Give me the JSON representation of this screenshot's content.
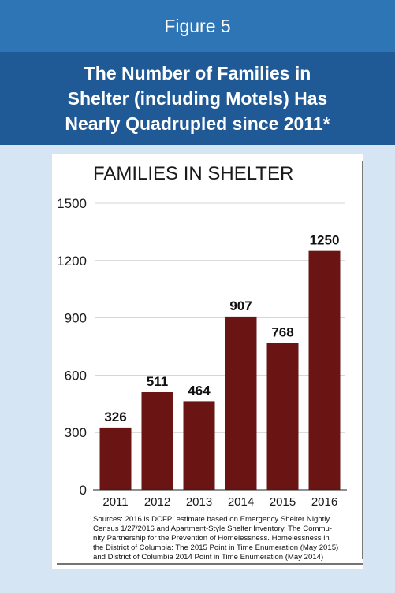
{
  "figure_label": "Figure 5",
  "title_lines": [
    "The Number of Families in",
    "Shelter (including Motels) Has",
    "Nearly Quadrupled since 2011*"
  ],
  "colors": {
    "header_bg": "#2e75b6",
    "title_bg": "#1f5a96",
    "panel_bg": "#d5e5f4",
    "bar": "#6b1414"
  },
  "chart_data": {
    "type": "bar",
    "title": "FAMILIES IN SHELTER",
    "categories": [
      "2011",
      "2012",
      "2013",
      "2014",
      "2015",
      "2016"
    ],
    "values": [
      326,
      511,
      464,
      907,
      768,
      1250
    ],
    "data_labels": [
      "326",
      "511",
      "464",
      "907",
      "768",
      "1250"
    ],
    "yticks": [
      0,
      300,
      600,
      900,
      1200,
      1500
    ],
    "ylim": [
      0,
      1500
    ],
    "grid": true,
    "xlabel": "",
    "ylabel": ""
  },
  "sources_lines": [
    "Sources: 2016 is DCFPI estimate based on Emergency Shelter Nightly",
    "Census 1/27/2016 and Apartment-Style Shelter Inventory. The Commu-",
    "nity Partnership for the Prevention of Homelessness. Homelessness in",
    "the District of Columbia: The 2015 Point in Time Enumeration (May 2015)",
    "and District of Columbia 2014 Point in Time Enumeration (May 2014)"
  ]
}
